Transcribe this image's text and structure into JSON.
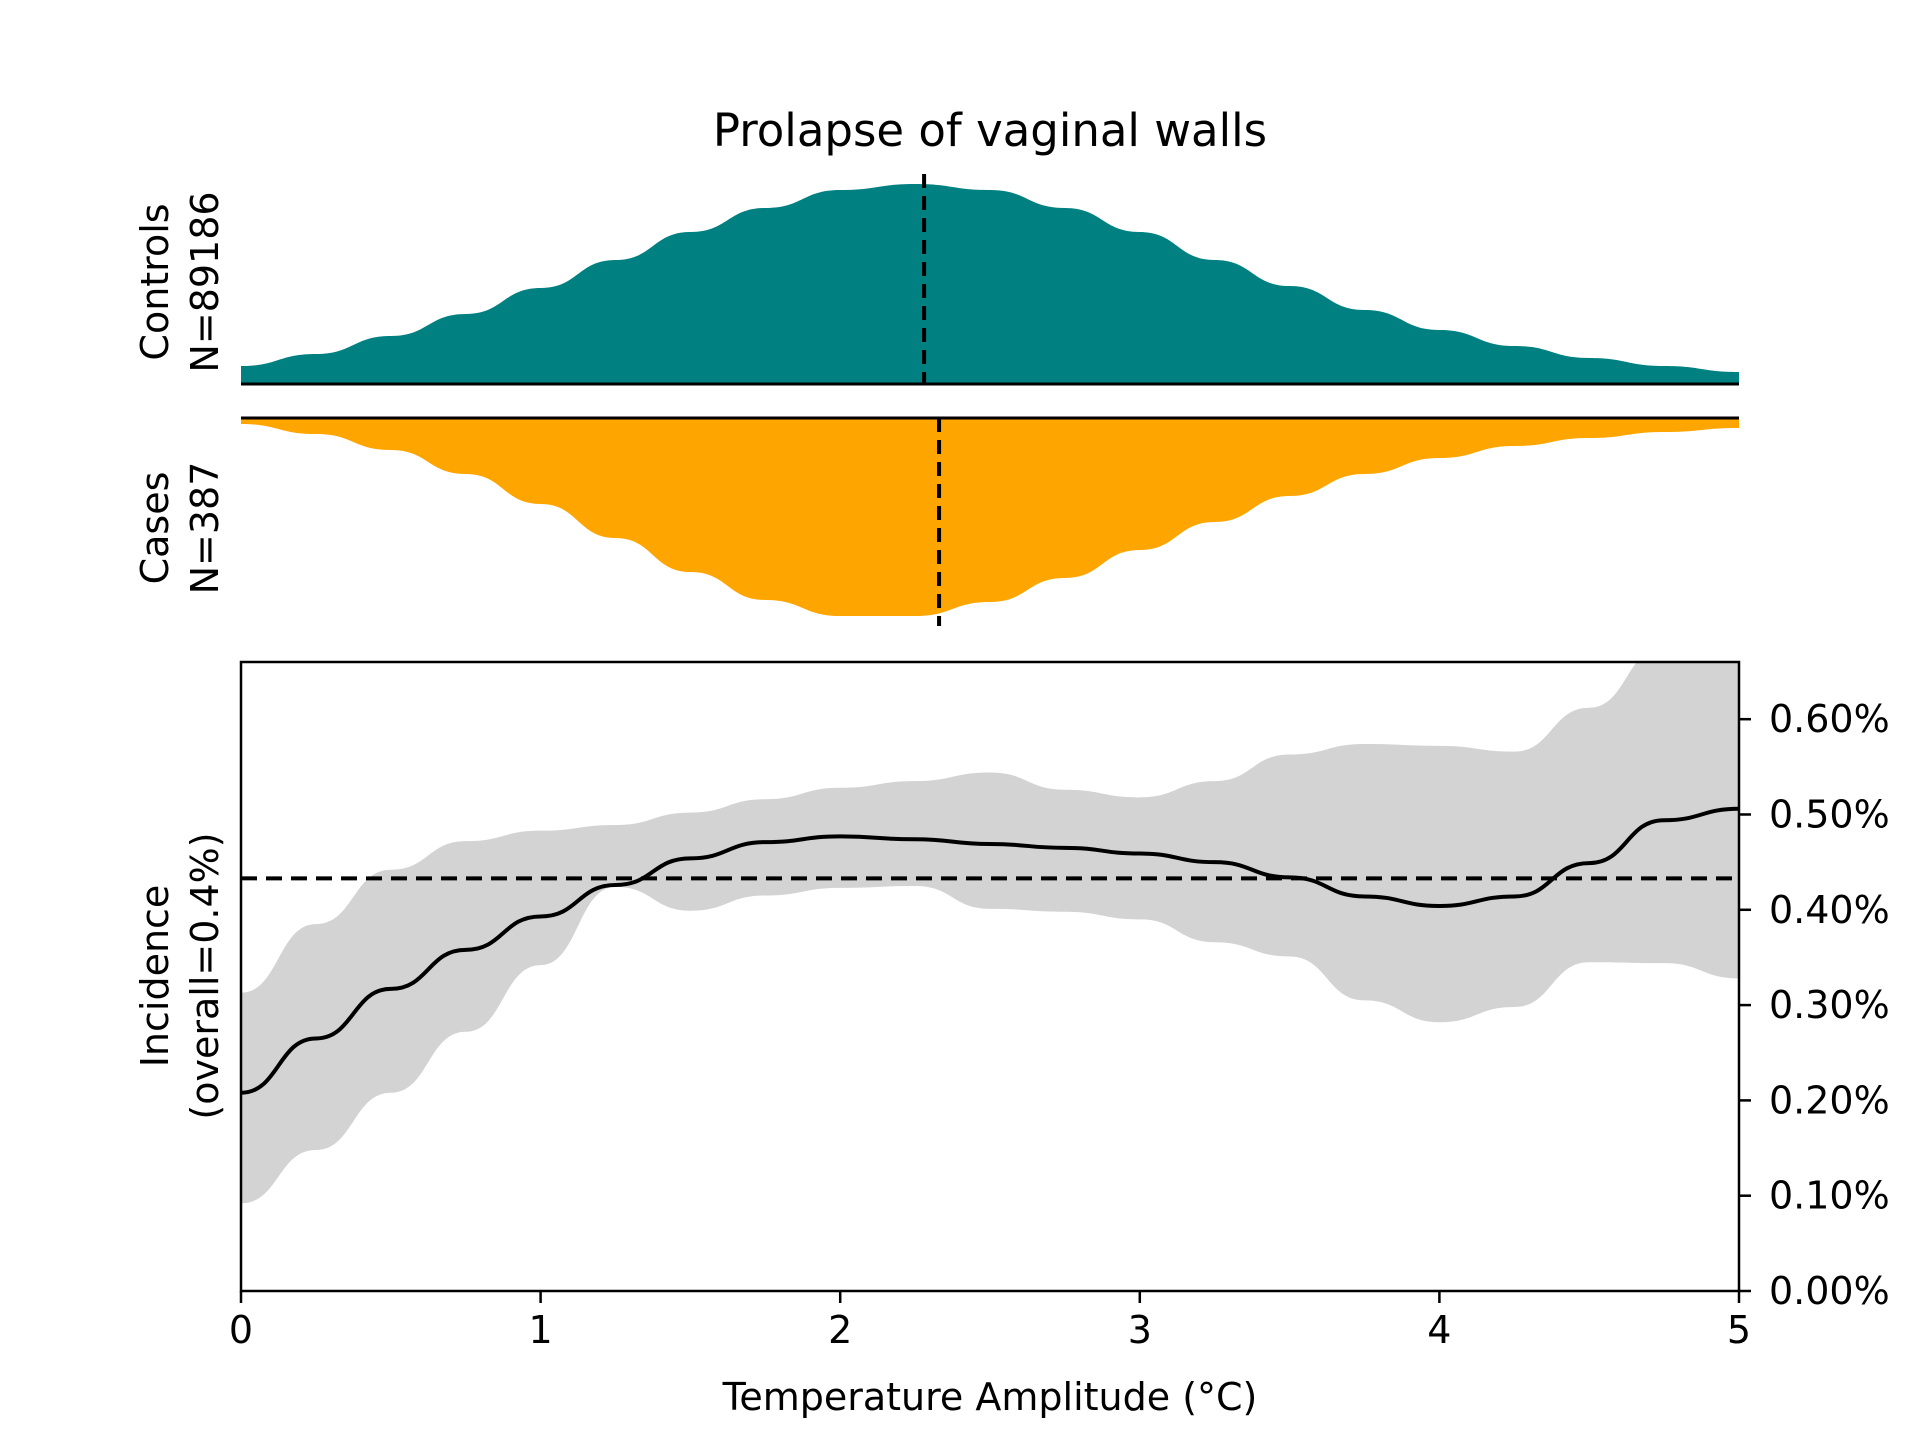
{
  "title": "Prolapse of vaginal walls",
  "colors": {
    "controls_fill": "#008080",
    "cases_fill": "#FFA500",
    "ci_band": "#D3D3D3",
    "line": "#000000"
  },
  "density_panels": {
    "controls": {
      "label_line1": "Controls",
      "label_line2": "N=89186",
      "median": 2.28,
      "x": [
        0,
        0.25,
        0.5,
        0.75,
        1.0,
        1.25,
        1.5,
        1.75,
        2.0,
        2.25,
        2.5,
        2.75,
        3.0,
        3.25,
        3.5,
        3.75,
        4.0,
        4.25,
        4.5,
        4.75,
        5.0
      ],
      "density": [
        0.09,
        0.15,
        0.24,
        0.35,
        0.48,
        0.62,
        0.76,
        0.88,
        0.97,
        1.0,
        0.97,
        0.88,
        0.76,
        0.62,
        0.49,
        0.37,
        0.27,
        0.19,
        0.13,
        0.09,
        0.06
      ]
    },
    "cases": {
      "label_line1": "Cases",
      "label_line2": "N=387",
      "median": 2.33,
      "x": [
        0,
        0.25,
        0.5,
        0.75,
        1.0,
        1.25,
        1.5,
        1.75,
        2.0,
        2.25,
        2.5,
        2.75,
        3.0,
        3.25,
        3.5,
        3.75,
        4.0,
        4.25,
        4.5,
        4.75,
        5.0
      ],
      "density": [
        0.03,
        0.08,
        0.16,
        0.28,
        0.43,
        0.6,
        0.77,
        0.91,
        0.99,
        0.99,
        0.92,
        0.8,
        0.66,
        0.52,
        0.39,
        0.28,
        0.2,
        0.14,
        0.1,
        0.07,
        0.05
      ]
    }
  },
  "chart_data": {
    "type": "line",
    "title": "Prolapse of vaginal walls",
    "xlabel": "Temperature Amplitude (°C)",
    "ylabel_line1": "Incidence",
    "ylabel_line2": "(overall=0.4%)",
    "xlim": [
      0,
      5
    ],
    "ylim": [
      0,
      0.0066
    ],
    "x_ticks": [
      0,
      1,
      2,
      3,
      4,
      5
    ],
    "x_tick_labels": [
      "0",
      "1",
      "2",
      "3",
      "4",
      "5"
    ],
    "y_ticks": [
      0,
      0.001,
      0.002,
      0.003,
      0.004,
      0.005,
      0.006
    ],
    "y_tick_labels": [
      "0.00%",
      "0.10%",
      "0.20%",
      "0.30%",
      "0.40%",
      "0.50%",
      "0.60%"
    ],
    "y_axis_side": "right",
    "overall_incidence": 0.00433,
    "series": [
      {
        "x": [
          0,
          0.25,
          0.5,
          0.75,
          1.0,
          1.25,
          1.5,
          1.75,
          2.0,
          2.25,
          2.5,
          2.75,
          3.0,
          3.25,
          3.5,
          3.75,
          4.0,
          4.25,
          4.5,
          4.75,
          5.0
        ],
        "y": [
          0.00208,
          0.00265,
          0.00317,
          0.00358,
          0.00393,
          0.00426,
          0.00454,
          0.00471,
          0.00477,
          0.00474,
          0.00469,
          0.00465,
          0.00459,
          0.0045,
          0.00434,
          0.00414,
          0.00404,
          0.00414,
          0.00449,
          0.00494,
          0.00506
        ],
        "lower": [
          0.00092,
          0.00148,
          0.00208,
          0.00272,
          0.00342,
          0.00424,
          0.00399,
          0.00415,
          0.00423,
          0.00425,
          0.00401,
          0.00398,
          0.0039,
          0.00366,
          0.00351,
          0.00305,
          0.00282,
          0.00298,
          0.00345,
          0.00344,
          0.00328
        ],
        "upper": [
          0.00313,
          0.00385,
          0.00442,
          0.00472,
          0.00483,
          0.00489,
          0.00502,
          0.00516,
          0.00528,
          0.00535,
          0.00544,
          0.00526,
          0.00518,
          0.00535,
          0.00563,
          0.00574,
          0.00572,
          0.00566,
          0.00612,
          0.00676,
          0.00693
        ]
      }
    ],
    "grid": false,
    "legend": "none"
  }
}
